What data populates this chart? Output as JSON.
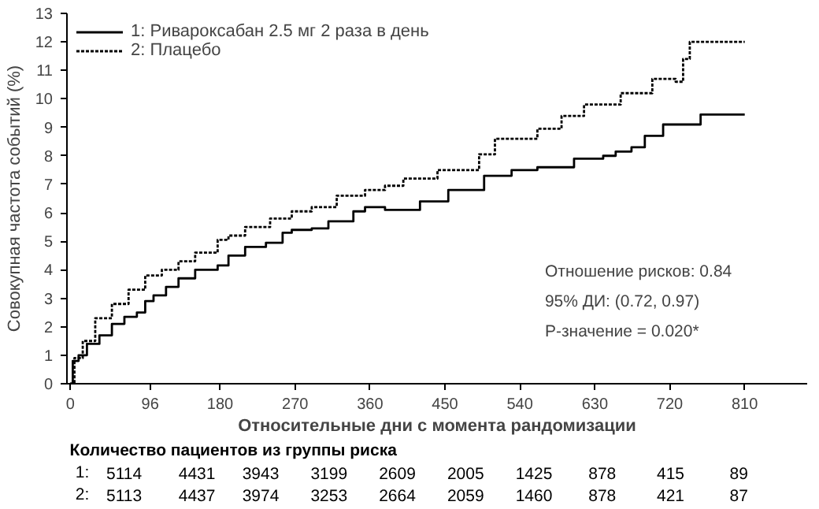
{
  "chart_data": {
    "type": "step",
    "xlabel": "Относительные дни с момента рандомизации",
    "ylabel": "Совокупная частота событий (%)",
    "xlim": [
      -4,
      885
    ],
    "ylim": [
      0,
      13
    ],
    "xticks": [
      0,
      96,
      180,
      270,
      360,
      450,
      540,
      630,
      720,
      810
    ],
    "yticks": [
      0,
      1,
      2,
      3,
      4,
      5,
      6,
      7,
      8,
      9,
      10,
      11,
      12,
      13
    ],
    "legend": "top left",
    "grid": false,
    "series": [
      {
        "name": "1: Ривароксабан 2.5 мг 2 раза в день",
        "color": "#000000",
        "line_style": "solid",
        "x": [
          0,
          3,
          10,
          20,
          35,
          50,
          65,
          80,
          90,
          100,
          115,
          130,
          150,
          177,
          190,
          210,
          235,
          255,
          266,
          290,
          310,
          340,
          354,
          378,
          420,
          454,
          497,
          530,
          561,
          605,
          640,
          655,
          674,
          690,
          712,
          757,
          810
        ],
        "values": [
          0,
          0.8,
          1.0,
          1.4,
          1.7,
          2.1,
          2.35,
          2.5,
          2.9,
          3.1,
          3.4,
          3.7,
          4.0,
          4.15,
          4.5,
          4.8,
          4.95,
          5.3,
          5.4,
          5.45,
          5.7,
          6.05,
          6.2,
          6.1,
          6.4,
          6.8,
          7.3,
          7.5,
          7.6,
          7.9,
          8.0,
          8.15,
          8.3,
          8.7,
          9.1,
          9.45,
          9.45
        ]
      },
      {
        "name": "2: Плацебо",
        "color": "#000000",
        "line_style": "dashed",
        "x": [
          0,
          5,
          15,
          30,
          50,
          70,
          90,
          110,
          130,
          150,
          177,
          190,
          210,
          240,
          266,
          290,
          320,
          354,
          378,
          400,
          441,
          491,
          510,
          561,
          590,
          617,
          661,
          699,
          727,
          736,
          744,
          810
        ],
        "values": [
          0,
          0.9,
          1.5,
          2.3,
          2.8,
          3.3,
          3.8,
          4.0,
          4.3,
          4.6,
          5.05,
          5.2,
          5.5,
          5.8,
          6.05,
          6.2,
          6.6,
          6.8,
          6.95,
          7.2,
          7.5,
          8.05,
          8.6,
          8.95,
          9.4,
          9.8,
          10.2,
          10.7,
          10.6,
          11.4,
          12.0,
          12.0
        ]
      }
    ],
    "annotations": [
      "Отношение рисков: 0.84",
      "95% ДИ: (0.72, 0.97)",
      "P-значение = 0.020*",
      "Количество пациентов из группы риска",
      "1: 5114 4431 3943 3199 2609 2005 1425 878 415 89",
      "2: 5113 4437 3974 3253 2664 2059 1460 878 421 87"
    ]
  }
}
